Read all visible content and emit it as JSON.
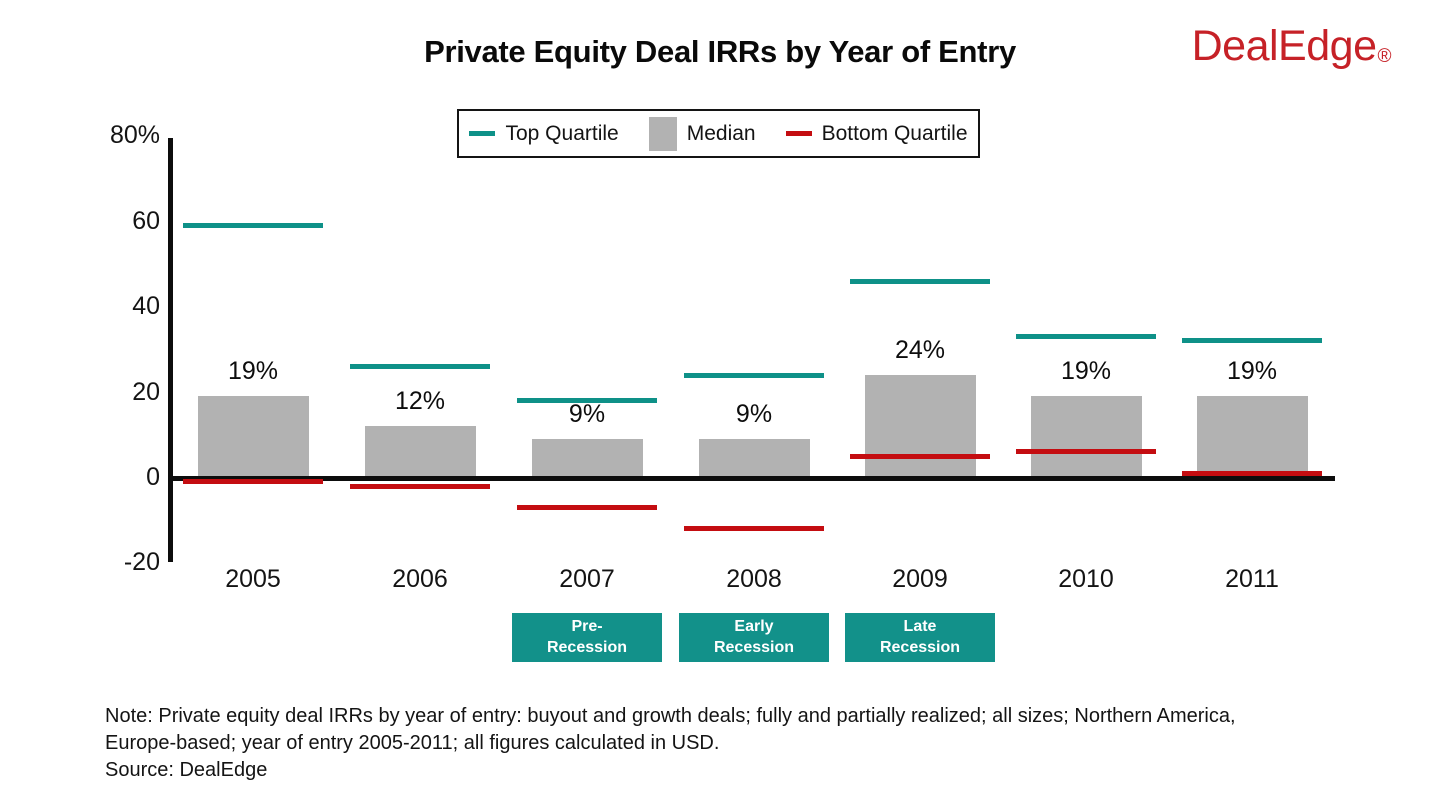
{
  "title": "Private Equity Deal IRRs by Year of Entry",
  "logo": {
    "text": "DealEdge",
    "reg_mark": "®",
    "color": "#c62127"
  },
  "colors": {
    "top_quartile": "#0e9188",
    "median": "#b2b2b2",
    "bottom_quartile": "#c40d11",
    "axis": "#0d0d0d",
    "recession_badge_bg": "#12918a"
  },
  "legend": {
    "items": [
      {
        "label": "Top Quartile",
        "swatch": "line",
        "color": "#0e9188"
      },
      {
        "label": "Median",
        "swatch": "square",
        "color": "#b2b2b2"
      },
      {
        "label": "Bottom Quartile",
        "swatch": "line",
        "color": "#c40d11"
      }
    ]
  },
  "chart_data": {
    "type": "bar",
    "title": "Private Equity Deal IRRs by Year of Entry",
    "categories": [
      "2005",
      "2006",
      "2007",
      "2008",
      "2009",
      "2010",
      "2011"
    ],
    "series": [
      {
        "name": "Top Quartile",
        "style": "dash-marker",
        "color": "#0e9188",
        "values": [
          59,
          26,
          18,
          24,
          46,
          33,
          32
        ]
      },
      {
        "name": "Median",
        "style": "bar",
        "color": "#b2b2b2",
        "values": [
          19,
          12,
          9,
          9,
          24,
          19,
          19
        ],
        "labels": [
          "19%",
          "12%",
          "9%",
          "9%",
          "24%",
          "19%",
          "19%"
        ]
      },
      {
        "name": "Bottom Quartile",
        "style": "dash-marker",
        "color": "#c40d11",
        "values": [
          -1,
          -2,
          -7,
          -12,
          5,
          6,
          1
        ]
      }
    ],
    "y_ticks": [
      {
        "label": "80%",
        "value": 80
      },
      {
        "label": "60",
        "value": 60
      },
      {
        "label": "40",
        "value": 40
      },
      {
        "label": "20",
        "value": 20
      },
      {
        "label": "0",
        "value": 0
      },
      {
        "label": "-20",
        "value": -20
      }
    ],
    "ylim": [
      -20,
      80
    ],
    "grid": false,
    "legend_position": "top-center",
    "annotations": [
      {
        "lines": [
          "Pre-",
          "Recession"
        ],
        "category": "2007"
      },
      {
        "lines": [
          "Early",
          "Recession"
        ],
        "category": "2008"
      },
      {
        "lines": [
          "Late",
          "Recession"
        ],
        "category": "2009"
      }
    ]
  },
  "footer": {
    "note_lines": [
      "Note: Private equity deal IRRs by year of entry: buyout and growth deals; fully and partially realized; all sizes; Northern America,",
      "Europe-based; year of entry 2005-2011; all figures calculated in USD."
    ],
    "source": "Source: DealEdge"
  }
}
